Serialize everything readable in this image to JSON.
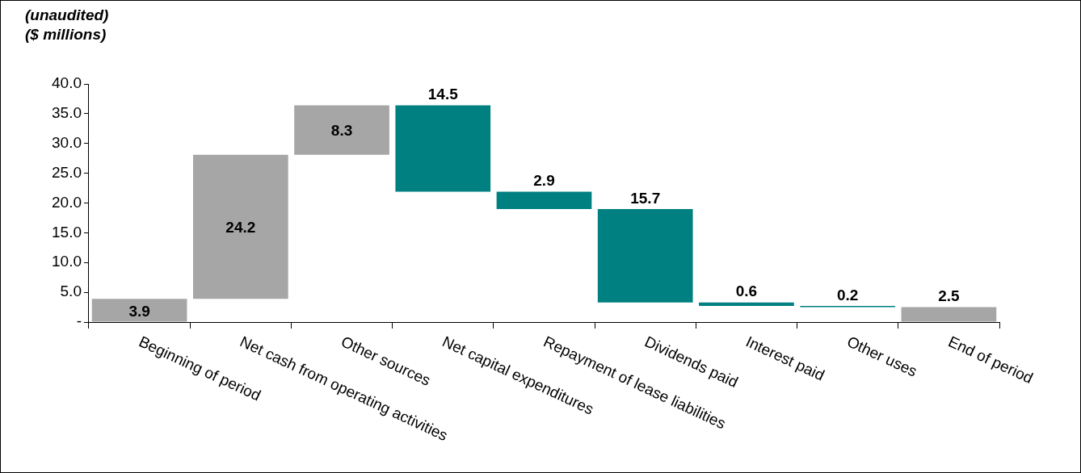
{
  "chart_data": {
    "type": "bar",
    "ylabel": "(unaudited)\n($ millions)",
    "categories": [
      "Beginning of period",
      "Net cash from operating activities",
      "Other sources",
      "Net capital expenditures",
      "Repayment of lease liabilities",
      "Dividends paid",
      "Interest paid",
      "Other uses",
      "End of period"
    ],
    "base": [
      0,
      3.9,
      28.1,
      36.4,
      21.9,
      19.0,
      3.3,
      2.7,
      0
    ],
    "values": [
      3.9,
      24.2,
      8.3,
      -14.5,
      -2.9,
      -15.7,
      -0.6,
      -0.2,
      2.5
    ],
    "colors": [
      "#a6a6a6",
      "#a6a6a6",
      "#a6a6a6",
      "#008080",
      "#008080",
      "#008080",
      "#008080",
      "#008080",
      "#a6a6a6"
    ],
    "value_labels": [
      "3.9",
      "24.2",
      "8.3",
      "14.5",
      "2.9",
      "15.7",
      "0.6",
      "0.2",
      "2.5"
    ],
    "ylim": [
      0,
      40
    ],
    "yticks": [
      {
        "value": 0,
        "label": "-"
      },
      {
        "value": 5,
        "label": "5.0"
      },
      {
        "value": 10,
        "label": "10.0"
      },
      {
        "value": 15,
        "label": "15.0"
      },
      {
        "value": 20,
        "label": "20.0"
      },
      {
        "value": 25,
        "label": "25.0"
      },
      {
        "value": 30,
        "label": "30.0"
      },
      {
        "value": 35,
        "label": "35.0"
      },
      {
        "value": 40,
        "label": "40.0"
      }
    ],
    "legend": false
  }
}
